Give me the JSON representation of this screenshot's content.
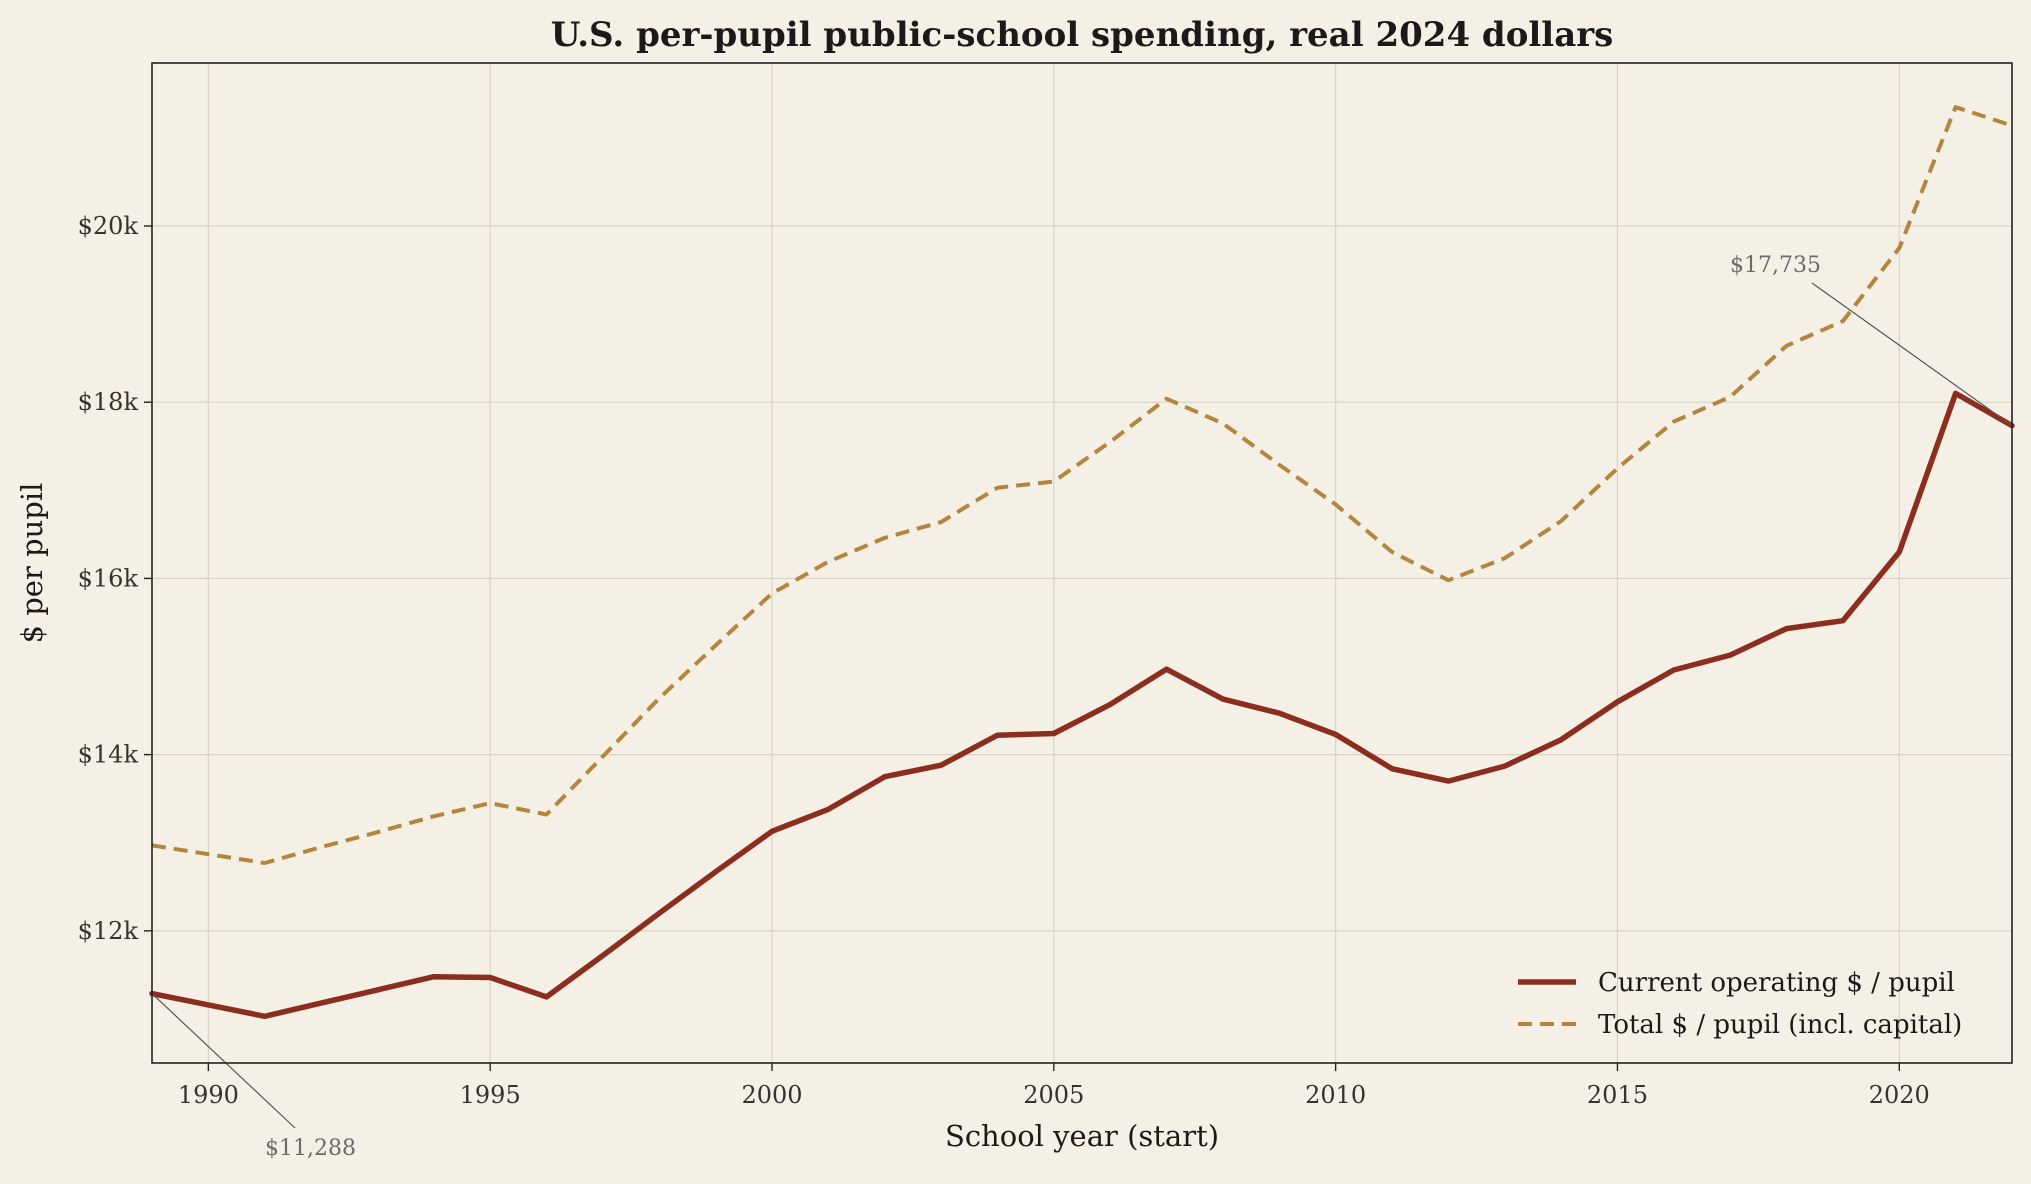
{
  "chart_data": {
    "type": "line",
    "title": "U.S. per-pupil public-school spending, real 2024 dollars",
    "xlabel": "School year (start)",
    "ylabel": "$ per pupil",
    "xlim": [
      1989,
      2022
    ],
    "ylim": [
      10500,
      21850
    ],
    "x_ticks": [
      1990,
      1995,
      2000,
      2005,
      2010,
      2015,
      2020
    ],
    "x_tick_labels": [
      "1990",
      "1995",
      "2000",
      "2005",
      "2010",
      "2015",
      "2020"
    ],
    "y_ticks": [
      12000,
      14000,
      16000,
      18000,
      20000
    ],
    "y_tick_labels": [
      "$12k",
      "$14k",
      "$16k",
      "$18k",
      "$20k"
    ],
    "grid": true,
    "legend_position": "bottom-right",
    "x": [
      1989,
      1990,
      1991,
      1992,
      1993,
      1994,
      1995,
      1996,
      1997,
      1998,
      1999,
      2000,
      2001,
      2002,
      2003,
      2004,
      2005,
      2006,
      2007,
      2008,
      2009,
      2010,
      2011,
      2012,
      2013,
      2014,
      2015,
      2016,
      2017,
      2018,
      2019,
      2020,
      2021,
      2022
    ],
    "series": [
      {
        "name": "Current operating $ / pupil",
        "color": "#8b2e1f",
        "style": "solid",
        "values": [
          11288,
          11160,
          11030,
          11180,
          11330,
          11480,
          11470,
          11250,
          11720,
          12200,
          12670,
          13130,
          13380,
          13750,
          13880,
          14220,
          14240,
          14570,
          14970,
          14630,
          14470,
          14230,
          13840,
          13700,
          13870,
          14170,
          14600,
          14960,
          15130,
          15430,
          15520,
          16300,
          18100,
          17735
        ]
      },
      {
        "name": "Total $ / pupil (incl. capital)",
        "color": "#b5843e",
        "style": "dashed",
        "values": [
          12970,
          12870,
          12770,
          12950,
          13120,
          13300,
          13450,
          13320,
          13980,
          14640,
          15240,
          15830,
          16190,
          16460,
          16640,
          17030,
          17100,
          17550,
          18040,
          17760,
          17290,
          16840,
          16300,
          15980,
          16230,
          16650,
          17250,
          17780,
          18060,
          18640,
          18920,
          19750,
          21350,
          21140
        ]
      }
    ],
    "annotations": [
      {
        "text": "$11,288",
        "x": 1989,
        "y": 11288
      },
      {
        "text": "$17,735",
        "x": 2022,
        "y": 17735
      }
    ]
  }
}
